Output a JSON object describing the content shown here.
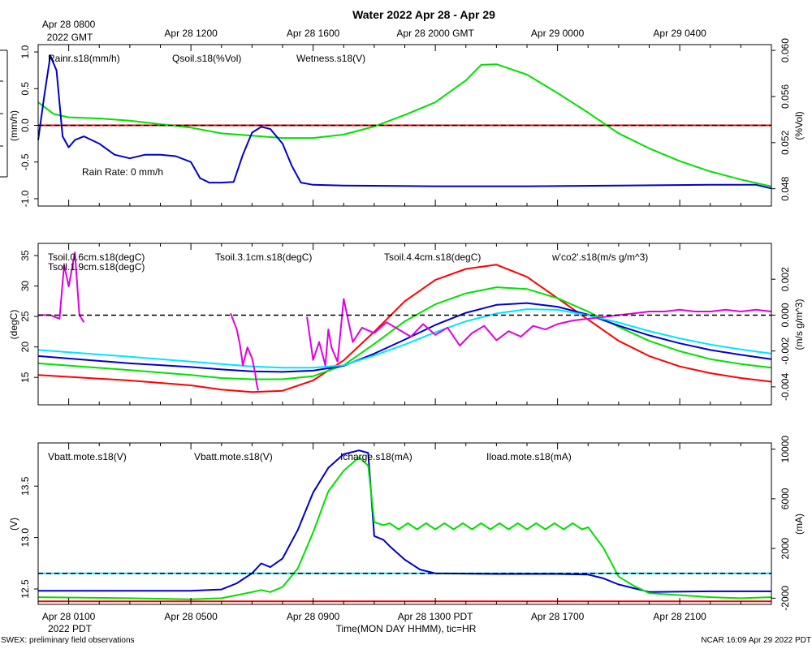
{
  "title": "Water 2022 Apr 28 - Apr 29",
  "top_axis": {
    "labels": [
      "Apr 28 0800",
      "Apr 28 1200",
      "Apr 28 1600",
      "Apr 28 2000 GMT",
      "Apr 29 0000",
      "Apr 29 0400"
    ],
    "label_hours": [
      0,
      4,
      8,
      12,
      16,
      20
    ],
    "sub_label": "2022 GMT"
  },
  "bottom_axis": {
    "labels": [
      "Apr 28 0100",
      "Apr 28 0500",
      "Apr 28 0900",
      "Apr 28 1300 PDT",
      "Apr 28 1700",
      "Apr 28 2100"
    ],
    "label_hours": [
      0,
      4,
      8,
      12,
      16,
      20
    ],
    "sub_label": "2022 PDT",
    "xlabel": "Time(MON DAY HHMM), tic=HR"
  },
  "footer": {
    "left": "SWEX: preliminary field observations",
    "right": "NCAR 16:09 Apr 29 2022 PDT"
  },
  "colors": {
    "red": "#ff0000",
    "green": "#00e000",
    "blue": "#0000cc",
    "cyan": "#00e5ff",
    "magenta": "#e000e0"
  },
  "chart_data": [
    {
      "type": "line",
      "x_hours": [
        -1,
        23
      ],
      "left_axis": {
        "label": "(mm/h)",
        "ylim": [
          -1.1,
          1.1
        ],
        "ticks": [
          "-1.0",
          "-0.5",
          "0.0",
          "0.5",
          "1.0"
        ],
        "tick_values": [
          -1,
          -0.5,
          0,
          0.5,
          1
        ]
      },
      "right_axis": {
        "label": "(%Vol)",
        "ylim": [
          0.0465,
          0.0605
        ],
        "ticks": [
          "0.048",
          "0.052",
          "0.056",
          "0.060"
        ],
        "tick_values": [
          0.048,
          0.052,
          0.056,
          0.06
        ]
      },
      "legend": [
        "Rainr.s18(mm/h)",
        "Qsoil.s18(%Vol)",
        "Wetness.s18(V)"
      ],
      "annotation": "Rain Rate: 0 mm/h",
      "reference_line": 0,
      "series": [
        {
          "name": "Rainr.s18(mm/h)",
          "axis": "left",
          "color": "red",
          "x": [
            -1,
            23
          ],
          "y": [
            0,
            0
          ]
        },
        {
          "name": "Qsoil.s18(%Vol)",
          "axis": "right",
          "color": "green",
          "x": [
            -1,
            -0.5,
            0,
            1,
            2,
            3,
            4,
            5,
            6,
            7,
            8,
            9,
            10,
            11,
            12,
            13,
            13.5,
            14,
            15,
            16,
            17,
            18,
            19,
            20,
            21,
            22,
            23
          ],
          "y": [
            0.0555,
            0.0545,
            0.0542,
            0.0541,
            0.0539,
            0.0536,
            0.0533,
            0.0528,
            0.0526,
            0.0524,
            0.0524,
            0.0527,
            0.0534,
            0.0544,
            0.0555,
            0.0574,
            0.05875,
            0.0588,
            0.0579,
            0.0563,
            0.0546,
            0.0528,
            0.0515,
            0.0504,
            0.0495,
            0.0488,
            0.0482
          ]
        },
        {
          "name": "Wetness.s18(V)",
          "axis": "left",
          "color": "blue",
          "x": [
            -1,
            -0.8,
            -0.6,
            -0.4,
            -0.2,
            0,
            0.2,
            0.5,
            1,
            1.5,
            2,
            2.5,
            3,
            3.5,
            4,
            4.3,
            4.6,
            5,
            5.4,
            5.7,
            6,
            6.3,
            6.6,
            7,
            7.3,
            7.6,
            8,
            9,
            12,
            15,
            18,
            21,
            22.5,
            23
          ],
          "y": [
            -0.2,
            0.4,
            0.95,
            0.75,
            -0.15,
            -0.3,
            -0.2,
            -0.15,
            -0.25,
            -0.4,
            -0.45,
            -0.4,
            -0.4,
            -0.42,
            -0.5,
            -0.72,
            -0.78,
            -0.78,
            -0.77,
            -0.4,
            -0.1,
            -0.02,
            -0.05,
            -0.25,
            -0.55,
            -0.78,
            -0.81,
            -0.82,
            -0.83,
            -0.83,
            -0.82,
            -0.81,
            -0.81,
            -0.86
          ]
        }
      ]
    },
    {
      "type": "line",
      "x_hours": [
        -1,
        23
      ],
      "left_axis": {
        "label": "(degC)",
        "ylim": [
          10.5,
          37
        ],
        "ticks": [
          "15",
          "20",
          "25",
          "30",
          "35"
        ],
        "tick_values": [
          15,
          20,
          25,
          30,
          35
        ]
      },
      "right_axis": {
        "label": "(m/s g/m^3)",
        "ylim": [
          -0.005,
          0.004
        ],
        "ticks": [
          "-0.004",
          "-0.002",
          "0.000",
          "0.002"
        ],
        "tick_values": [
          -0.004,
          -0.002,
          0,
          0.002
        ]
      },
      "legend": [
        "Tsoil.0.6cm.s18(degC)",
        "Tsoil.1.9cm.s18(degC)",
        "Tsoil.3.1cm.s18(degC)",
        "Tsoil.4.4cm.s18(degC)",
        "w'co2'.s18(m/s g/m^3)"
      ],
      "reference_line": 0,
      "series": [
        {
          "name": "Tsoil.0.6cm.s18(degC)",
          "axis": "left",
          "color": "red",
          "x": [
            -1,
            2,
            4,
            5,
            6,
            7,
            8,
            9,
            10,
            11,
            12,
            13,
            14,
            15,
            16,
            17,
            18,
            19,
            20,
            21,
            22,
            23
          ],
          "y": [
            15.4,
            14.5,
            13.7,
            13.0,
            12.6,
            12.8,
            14.5,
            17.8,
            22.5,
            27.5,
            31.0,
            32.8,
            33.5,
            31.5,
            28.0,
            24.5,
            21.0,
            18.5,
            16.8,
            15.7,
            14.9,
            14.3
          ]
        },
        {
          "name": "Tsoil.1.9cm.s18(degC)",
          "axis": "left",
          "color": "green",
          "x": [
            -1,
            2,
            4,
            5,
            6,
            7,
            8,
            9,
            10,
            11,
            12,
            13,
            14,
            15,
            16,
            17,
            18,
            19,
            20,
            21,
            22,
            23
          ],
          "y": [
            17.3,
            16.2,
            15.4,
            14.9,
            14.7,
            14.7,
            15.2,
            17.0,
            20.5,
            24.2,
            27.0,
            28.8,
            29.8,
            29.5,
            28.0,
            25.8,
            23.3,
            21.0,
            19.3,
            18.0,
            17.2,
            16.6
          ]
        },
        {
          "name": "Tsoil.3.1cm.s18(degC)",
          "axis": "left",
          "color": "blue",
          "x": [
            -1,
            2,
            4,
            5,
            6,
            7,
            8,
            9,
            10,
            11,
            12,
            13,
            14,
            15,
            16,
            17,
            18,
            19,
            20,
            21,
            22,
            23
          ],
          "y": [
            18.5,
            17.3,
            16.7,
            16.3,
            16.0,
            15.9,
            16.1,
            16.9,
            18.9,
            21.2,
            23.6,
            25.6,
            26.9,
            27.2,
            26.6,
            25.3,
            23.5,
            21.9,
            20.6,
            19.5,
            18.7,
            18.0
          ]
        },
        {
          "name": "Tsoil.4.4cm.s18(degC)",
          "axis": "left",
          "color": "cyan",
          "x": [
            -1,
            2,
            4,
            5,
            6,
            7,
            8,
            9,
            10,
            11,
            12,
            13,
            14,
            15,
            16,
            17,
            18,
            19,
            20,
            21,
            22,
            23
          ],
          "y": [
            19.5,
            18.4,
            17.6,
            17.2,
            16.8,
            16.6,
            16.6,
            17.0,
            18.6,
            20.4,
            22.4,
            24.2,
            25.5,
            26.2,
            26.1,
            25.2,
            24.0,
            22.6,
            21.4,
            20.4,
            19.6,
            18.9
          ]
        },
        {
          "name": "w'co2'.s18(m/s g/m^3)",
          "axis": "right",
          "color": "magenta",
          "x": [
            -1,
            -0.6,
            -0.3,
            -0.15,
            0,
            0.2,
            0.35,
            0.5,
            null,
            5.3,
            5.5,
            5.6,
            5.7,
            5.85,
            6.0,
            6.1,
            6.15,
            6.2,
            null,
            7.8,
            8.0,
            8.2,
            8.4,
            8.5,
            8.6,
            8.8,
            9.0,
            9.3,
            9.6,
            10.0,
            10.4,
            10.8,
            11.2,
            11.6,
            12.0,
            12.4,
            12.8,
            13.2,
            13.6,
            14.0,
            14.4,
            14.8,
            15.2,
            15.6,
            16.0,
            16.5,
            17.0,
            17.5,
            18.0,
            18.5,
            19.0,
            19.5,
            20.0,
            20.5,
            21.0,
            21.5,
            22.0,
            22.5,
            23.0
          ],
          "y": [
            0.0,
            0.0,
            -0.0002,
            0.0028,
            0.0016,
            0.0035,
            0.0,
            -0.0004,
            null,
            0.0001,
            -0.0008,
            -0.0016,
            -0.0028,
            -0.0018,
            -0.0024,
            -0.0032,
            -0.0038,
            -0.0042,
            null,
            -0.0001,
            -0.0025,
            -0.0015,
            -0.0028,
            -0.0008,
            -0.0018,
            -0.0026,
            0.0009,
            -0.0015,
            -0.0007,
            -0.001,
            -0.0004,
            -0.0008,
            -0.0012,
            -0.0005,
            -0.0011,
            -0.0007,
            -0.0017,
            -0.001,
            -0.0006,
            -0.0014,
            -0.0009,
            -0.0012,
            -0.0006,
            -0.0008,
            -0.0005,
            -0.0003,
            -0.0002,
            -0.0001,
            0.0,
            0.0001,
            0.0002,
            0.0002,
            0.0003,
            0.0002,
            0.0002,
            0.0003,
            0.0002,
            0.0003,
            0.0002
          ]
        }
      ]
    },
    {
      "type": "line",
      "x_hours": [
        -1,
        23
      ],
      "left_axis": {
        "label": "(V)",
        "ylim": [
          12.35,
          13.92
        ],
        "ticks": [
          "12.5",
          "13.0",
          "13.5"
        ],
        "tick_values": [
          12.5,
          13.0,
          13.5
        ]
      },
      "right_axis": {
        "label": "(mA)",
        "ylim": [
          -2500,
          10500
        ],
        "ticks": [
          "-2000",
          "2000",
          "6000",
          "10000"
        ],
        "tick_values": [
          -2000,
          2000,
          6000,
          10000
        ]
      },
      "legend": [
        "Vbatt.mote.s18(V)",
        "Vbatt.mote.s18(V)",
        "Icharge.s18(mA)",
        "Iload.mote.s18(mA)"
      ],
      "reference_line": 0,
      "series": [
        {
          "name": "Iload.mote.s18(mA)",
          "axis": "right",
          "color": "cyan",
          "x": [
            -1,
            23
          ],
          "y": [
            0,
            0
          ]
        },
        {
          "name": "Vbatt.mote.s18(V) (red)",
          "axis": "left",
          "color": "red",
          "x": [
            -1,
            23
          ],
          "y": [
            12.38,
            12.38
          ]
        },
        {
          "name": "Icharge.s18(mA)",
          "axis": "right",
          "color": "blue",
          "x": [
            -1,
            2,
            4,
            5,
            5.5,
            6,
            6.3,
            6.6,
            7.0,
            7.5,
            8.0,
            8.5,
            9.0,
            9.5,
            9.8,
            10.0,
            10.3,
            10.5,
            11,
            11.5,
            12,
            14,
            16,
            17,
            17.5,
            18,
            18.5,
            19,
            21,
            23
          ],
          "y": [
            -1400,
            -1400,
            -1400,
            -1300,
            -800,
            0,
            800,
            500,
            1200,
            3500,
            6500,
            8500,
            9600,
            9900,
            9700,
            3000,
            2700,
            2200,
            1100,
            300,
            0,
            -50,
            -50,
            -100,
            -400,
            -900,
            -1200,
            -1500,
            -1450,
            -1450
          ]
        },
        {
          "name": "Vbatt.mote.s18(V)",
          "axis": "left",
          "color": "green",
          "x": [
            -1,
            2,
            4,
            5,
            5.5,
            6,
            6.3,
            6.6,
            7.0,
            7.5,
            8.0,
            8.5,
            9.0,
            9.5,
            9.8,
            10.0,
            10.3,
            10.5,
            10.8,
            11.1,
            11.4,
            11.7,
            12.0,
            12.3,
            12.6,
            12.9,
            13.2,
            13.5,
            13.8,
            14.1,
            14.4,
            14.7,
            15.0,
            15.3,
            15.6,
            15.9,
            16.2,
            16.5,
            16.8,
            17.0,
            17.5,
            18.0,
            18.5,
            19.0,
            20.0,
            21.0,
            22.0,
            23.0
          ],
          "y": [
            12.42,
            12.41,
            12.4,
            12.41,
            12.44,
            12.47,
            12.49,
            12.47,
            12.52,
            12.7,
            13.05,
            13.45,
            13.65,
            13.78,
            13.7,
            13.15,
            13.12,
            13.14,
            13.08,
            13.14,
            13.08,
            13.14,
            13.08,
            13.14,
            13.08,
            13.14,
            13.08,
            13.14,
            13.08,
            13.14,
            13.08,
            13.14,
            13.08,
            13.14,
            13.08,
            13.14,
            13.08,
            13.14,
            13.08,
            13.1,
            12.9,
            12.62,
            12.53,
            12.46,
            12.44,
            12.42,
            12.41,
            12.42
          ]
        }
      ]
    }
  ]
}
